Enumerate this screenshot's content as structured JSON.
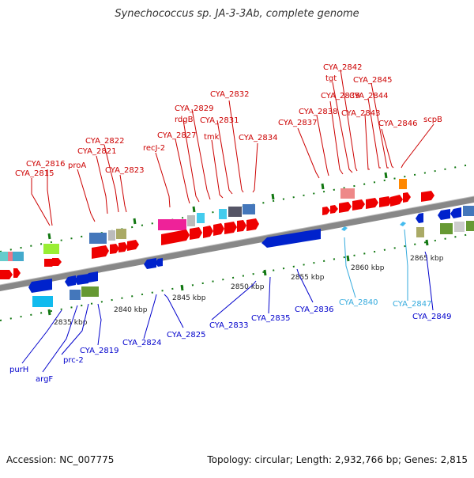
{
  "title": "Synechococcus sp. JA-3-3Ab, complete genome",
  "footer": {
    "accession": "Accession: NC_007775",
    "summary": "Topology: circular; Length: 2,932,766 bp; Genes: 2,815"
  },
  "colors": {
    "top_strand_labels": "#cc0000",
    "bottom_strand_labels": "#0000cc",
    "rna_labels": "#33aadd",
    "backbone": "#888888",
    "tick_marks": "#117711"
  },
  "scale_labels": [
    "2835 kbp",
    "2840 kbp",
    "2845 kbp",
    "2850 kbp",
    "2855 kbp",
    "2860 kbp",
    "2865 kbp"
  ],
  "top_labels": [
    "CYA_2815",
    "CYA_2816",
    "proA",
    "CYA_2821",
    "CYA_2822",
    "CYA_2823",
    "recJ-2",
    "CYA_2827",
    "rdgB",
    "CYA_2829",
    "tmk",
    "CYA_2831",
    "CYA_2832",
    "CYA_2834",
    "CYA_2837",
    "CYA_2838",
    "CYA_2839",
    "tgt",
    "CYA_2842",
    "CYA_2843",
    "CYA_2844",
    "CYA_2845",
    "CYA_2846",
    "scpB"
  ],
  "bottom_labels": [
    "purH",
    "argF",
    "prc-2",
    "CYA_2819",
    "CYA_2824",
    "CYA_2825",
    "CYA_2833",
    "CYA_2835",
    "CYA_2836",
    "CYA_2849"
  ],
  "rna_labels": [
    "CYA_2840",
    "CYA_2847"
  ]
}
